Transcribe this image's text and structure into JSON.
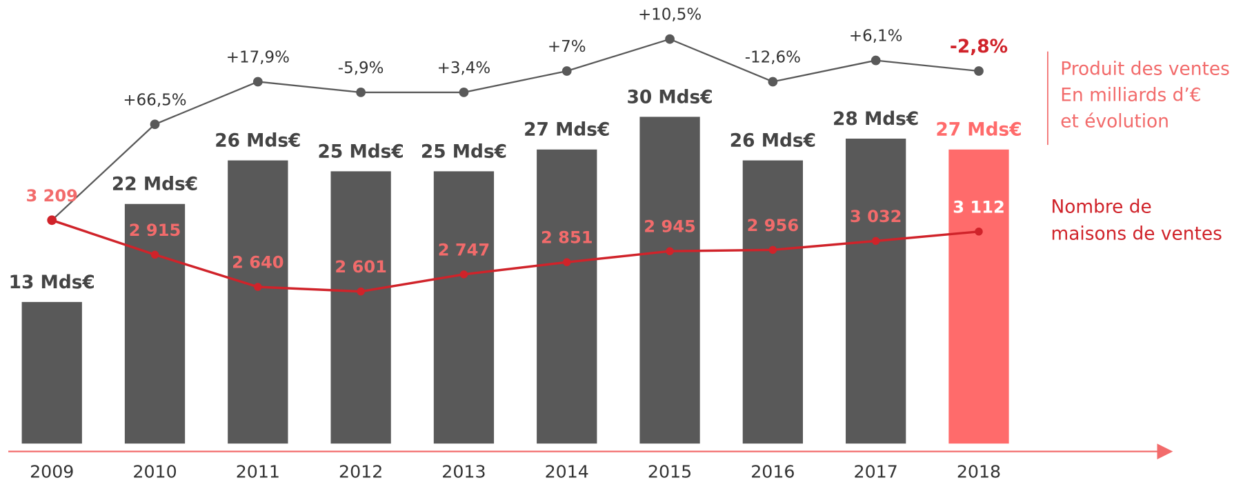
{
  "chart_data": {
    "type": "bar-line",
    "categories": [
      "2009",
      "2010",
      "2011",
      "2012",
      "2013",
      "2014",
      "2015",
      "2016",
      "2017",
      "2018"
    ],
    "series": [
      {
        "legend": [
          "Produit des ventes",
          "En milliards d’€",
          "et évolution"
        ],
        "colors": [
          "#595959",
          "#595959",
          "#595959",
          "#595959",
          "#595959",
          "#595959",
          "#595959",
          "#595959",
          "#595959",
          "#ff6b6b"
        ],
        "line_color": "#595959",
        "values": [
          13,
          22,
          26,
          25,
          25,
          27,
          30,
          26,
          28,
          27
        ],
        "value_labels": [
          "13 Mds€",
          "22 Mds€",
          "26 Mds€",
          "25 Mds€",
          "25 Mds€",
          "27 Mds€",
          "30 Mds€",
          "26 Mds€",
          "28 Mds€",
          "27 Mds€"
        ]
      },
      {
        "legend": [
          "Nombre de",
          "maisons de ventes"
        ],
        "color": "#d0232a",
        "values": [
          3209,
          2915,
          2640,
          2601,
          2747,
          2851,
          2945,
          2956,
          3032,
          3112
        ],
        "value_labels": [
          "3 209",
          "2 915",
          "2 640",
          "2 601",
          "2 747",
          "2 851",
          "2 945",
          "2 956",
          "3 032",
          "3 112"
        ]
      }
    ],
    "evolution": {
      "values": [
        null,
        66.5,
        17.9,
        -5.9,
        3.4,
        7,
        10.5,
        -12.6,
        6.1,
        -2.8
      ],
      "value_labels": [
        null,
        "+66,5%",
        "+17,9%",
        "-5,9%",
        "+3,4%",
        "+7%",
        "+10,5%",
        "-12,6%",
        "+6,1%",
        "-2,8%"
      ]
    }
  }
}
